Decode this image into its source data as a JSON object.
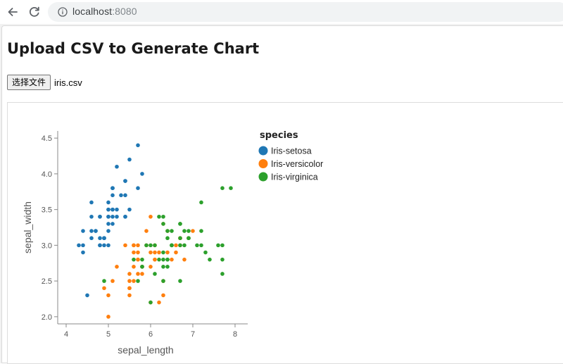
{
  "browser": {
    "url_host": "localhost",
    "url_port": ":8080"
  },
  "page": {
    "title": "Upload CSV to Generate Chart",
    "file_button_label": "选择文件",
    "file_name": "iris.csv"
  },
  "chart_data": {
    "type": "scatter",
    "title": "",
    "xlabel": "sepal_length",
    "ylabel": "sepal_width",
    "xlim": [
      3.8,
      8.3
    ],
    "ylim": [
      1.9,
      4.6
    ],
    "xticks": [
      4,
      5,
      6,
      7,
      8
    ],
    "yticks": [
      2.0,
      2.5,
      3.0,
      3.5,
      4.0,
      4.5
    ],
    "grid": false,
    "legend_title": "species",
    "legend_position": "right",
    "series": [
      {
        "name": "Iris-setosa",
        "color": "#1f77b4",
        "points": [
          [
            5.1,
            3.5
          ],
          [
            4.9,
            3.0
          ],
          [
            4.7,
            3.2
          ],
          [
            4.6,
            3.1
          ],
          [
            5.0,
            3.6
          ],
          [
            5.4,
            3.9
          ],
          [
            4.6,
            3.4
          ],
          [
            5.0,
            3.4
          ],
          [
            4.4,
            2.9
          ],
          [
            4.9,
            3.1
          ],
          [
            5.4,
            3.7
          ],
          [
            4.8,
            3.4
          ],
          [
            4.8,
            3.0
          ],
          [
            4.3,
            3.0
          ],
          [
            5.8,
            4.0
          ],
          [
            5.7,
            4.4
          ],
          [
            5.4,
            3.9
          ],
          [
            5.1,
            3.5
          ],
          [
            5.7,
            3.8
          ],
          [
            5.1,
            3.8
          ],
          [
            5.4,
            3.4
          ],
          [
            5.1,
            3.7
          ],
          [
            4.6,
            3.6
          ],
          [
            5.1,
            3.3
          ],
          [
            4.8,
            3.4
          ],
          [
            5.0,
            3.0
          ],
          [
            5.0,
            3.4
          ],
          [
            5.2,
            3.5
          ],
          [
            5.2,
            3.4
          ],
          [
            4.7,
            3.2
          ],
          [
            4.8,
            3.1
          ],
          [
            5.4,
            3.4
          ],
          [
            5.2,
            4.1
          ],
          [
            5.5,
            4.2
          ],
          [
            4.9,
            3.1
          ],
          [
            5.0,
            3.2
          ],
          [
            5.5,
            3.5
          ],
          [
            4.9,
            3.1
          ],
          [
            4.4,
            3.0
          ],
          [
            5.1,
            3.4
          ],
          [
            5.0,
            3.5
          ],
          [
            4.5,
            2.3
          ],
          [
            4.4,
            3.2
          ],
          [
            5.0,
            3.5
          ],
          [
            5.1,
            3.8
          ],
          [
            4.8,
            3.0
          ],
          [
            5.1,
            3.8
          ],
          [
            4.6,
            3.2
          ],
          [
            5.3,
            3.7
          ],
          [
            5.0,
            3.3
          ]
        ]
      },
      {
        "name": "Iris-versicolor",
        "color": "#ff7f0e",
        "points": [
          [
            7.0,
            3.2
          ],
          [
            6.4,
            3.2
          ],
          [
            6.9,
            3.1
          ],
          [
            5.5,
            2.3
          ],
          [
            6.5,
            2.8
          ],
          [
            5.7,
            2.8
          ],
          [
            6.3,
            3.3
          ],
          [
            4.9,
            2.4
          ],
          [
            6.6,
            2.9
          ],
          [
            5.2,
            2.7
          ],
          [
            5.0,
            2.0
          ],
          [
            5.9,
            3.0
          ],
          [
            6.0,
            2.2
          ],
          [
            6.1,
            2.9
          ],
          [
            5.6,
            2.9
          ],
          [
            6.7,
            3.1
          ],
          [
            5.6,
            3.0
          ],
          [
            5.8,
            2.7
          ],
          [
            6.2,
            2.2
          ],
          [
            5.6,
            2.5
          ],
          [
            5.9,
            3.2
          ],
          [
            6.1,
            2.8
          ],
          [
            6.3,
            2.5
          ],
          [
            6.1,
            2.8
          ],
          [
            6.4,
            2.9
          ],
          [
            6.6,
            3.0
          ],
          [
            6.8,
            2.8
          ],
          [
            6.7,
            3.0
          ],
          [
            6.0,
            2.9
          ],
          [
            5.7,
            2.6
          ],
          [
            5.5,
            2.4
          ],
          [
            5.5,
            2.4
          ],
          [
            5.8,
            2.7
          ],
          [
            6.0,
            2.7
          ],
          [
            5.4,
            3.0
          ],
          [
            6.0,
            3.4
          ],
          [
            6.7,
            3.1
          ],
          [
            6.3,
            2.3
          ],
          [
            5.6,
            3.0
          ],
          [
            5.5,
            2.5
          ],
          [
            5.5,
            2.6
          ],
          [
            6.1,
            3.0
          ],
          [
            5.8,
            2.6
          ],
          [
            5.0,
            2.3
          ],
          [
            5.6,
            2.7
          ],
          [
            5.7,
            3.0
          ],
          [
            5.7,
            2.9
          ],
          [
            6.2,
            2.9
          ],
          [
            5.1,
            2.5
          ],
          [
            5.7,
            2.8
          ]
        ]
      },
      {
        "name": "Iris-virginica",
        "color": "#2ca02c",
        "points": [
          [
            6.3,
            3.3
          ],
          [
            5.8,
            2.7
          ],
          [
            7.1,
            3.0
          ],
          [
            6.3,
            2.9
          ],
          [
            6.5,
            3.0
          ],
          [
            7.6,
            3.0
          ],
          [
            4.9,
            2.5
          ],
          [
            7.3,
            2.9
          ],
          [
            6.7,
            2.5
          ],
          [
            7.2,
            3.6
          ],
          [
            6.5,
            3.2
          ],
          [
            6.4,
            2.7
          ],
          [
            6.8,
            3.0
          ],
          [
            5.7,
            2.5
          ],
          [
            5.8,
            2.8
          ],
          [
            6.4,
            3.2
          ],
          [
            6.5,
            3.0
          ],
          [
            7.7,
            3.8
          ],
          [
            7.7,
            2.6
          ],
          [
            6.0,
            2.2
          ],
          [
            6.9,
            3.2
          ],
          [
            5.6,
            2.8
          ],
          [
            7.7,
            2.8
          ],
          [
            6.3,
            2.7
          ],
          [
            6.7,
            3.3
          ],
          [
            7.2,
            3.2
          ],
          [
            6.2,
            2.8
          ],
          [
            6.1,
            3.0
          ],
          [
            6.4,
            2.8
          ],
          [
            7.2,
            3.0
          ],
          [
            7.4,
            2.8
          ],
          [
            7.9,
            3.8
          ],
          [
            6.4,
            2.8
          ],
          [
            6.3,
            2.8
          ],
          [
            6.1,
            2.6
          ],
          [
            7.7,
            3.0
          ],
          [
            6.3,
            3.4
          ],
          [
            6.4,
            3.1
          ],
          [
            6.0,
            3.0
          ],
          [
            6.9,
            3.1
          ],
          [
            6.7,
            3.1
          ],
          [
            6.9,
            3.1
          ],
          [
            5.8,
            2.7
          ],
          [
            6.8,
            3.2
          ],
          [
            6.7,
            3.3
          ],
          [
            6.7,
            3.0
          ],
          [
            6.3,
            2.5
          ],
          [
            6.5,
            3.0
          ],
          [
            6.2,
            3.4
          ],
          [
            5.9,
            3.0
          ]
        ]
      }
    ]
  }
}
